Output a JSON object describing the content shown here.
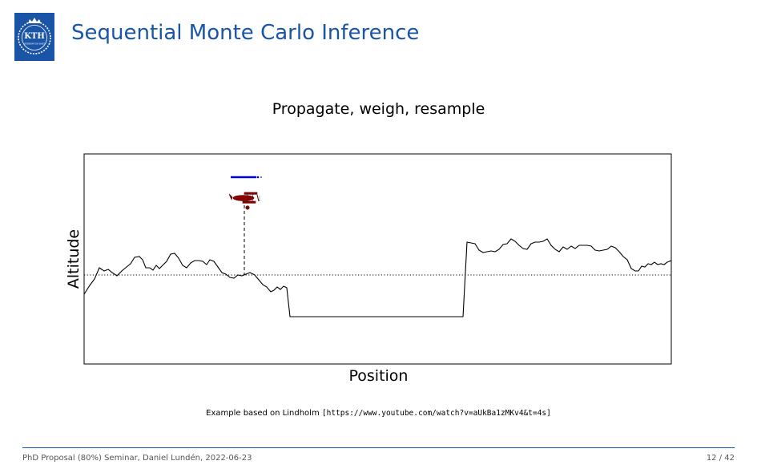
{
  "slide": {
    "title": "Sequential Monte Carlo Inference",
    "logo_text": "KTH",
    "logo_subtext": "VETENSKAP OCH KONST",
    "brand_color": "#1954a6"
  },
  "figure": {
    "subtitle": "Propagate, weigh, resample",
    "ylabel": "Altitude",
    "xlabel": "Position",
    "terrain_color": "#000000",
    "particle_color": "#0000cc",
    "plane_color": "#8b0000"
  },
  "caption": {
    "text": "Example based on Lindholm ",
    "url": "[https://www.youtube.com/watch?v=aUkBa1zMKv4&t=4s]"
  },
  "footer": {
    "left": "PhD Proposal (80%) Seminar, Daniel Lundén, 2022-06-23",
    "right": "12 / 42"
  }
}
